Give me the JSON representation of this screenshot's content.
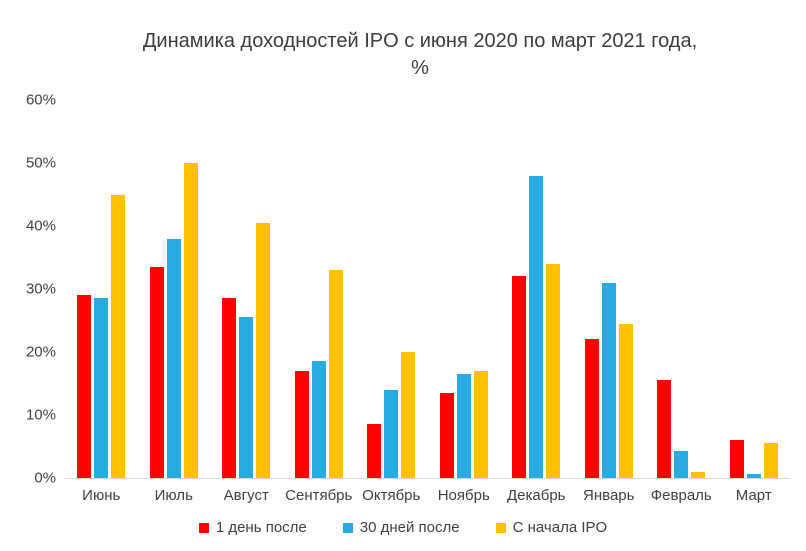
{
  "chart_data": {
    "type": "bar",
    "title": "Динамика доходностей IPO с июня 2020 по март 2021 года, %",
    "title_line1": "Динамика доходностей IPO с июня 2020 по март 2021 года,",
    "title_line2": "%",
    "categories": [
      "Июнь",
      "Июль",
      "Август",
      "Сентябрь",
      "Октябрь",
      "Ноябрь",
      "Декабрь",
      "Январь",
      "Февраль",
      "Март"
    ],
    "series": [
      {
        "name": "1 день после",
        "color": "#ff0000",
        "values": [
          29,
          33.5,
          28.5,
          17,
          8.5,
          13.5,
          32,
          22,
          15.5,
          6
        ]
      },
      {
        "name": "30 дней после",
        "color": "#29abe2",
        "values": [
          28.5,
          38,
          25.5,
          18.5,
          14,
          16.5,
          48,
          31,
          4.3,
          0.6
        ]
      },
      {
        "name": "С начала IPO",
        "color": "#ffc000",
        "values": [
          45,
          50,
          40.5,
          33,
          20,
          17,
          34,
          24.5,
          1,
          5.5
        ]
      }
    ],
    "ylim": [
      0,
      60
    ],
    "yticks": [
      {
        "value": 0,
        "label": "0%"
      },
      {
        "value": 10,
        "label": "10%"
      },
      {
        "value": 20,
        "label": "20%"
      },
      {
        "value": 30,
        "label": "30%"
      },
      {
        "value": 40,
        "label": "40%"
      },
      {
        "value": 50,
        "label": "50%"
      },
      {
        "value": 60,
        "label": "60%"
      }
    ],
    "grid": false,
    "legend_position": "bottom"
  },
  "colors": {
    "background": "#ffffff",
    "text": "#3c3c3c",
    "axis_text": "#404040",
    "axis_line": "#d9d9d9",
    "series_red": "#ff0000",
    "series_blue": "#29abe2",
    "series_yellow": "#ffc000"
  }
}
